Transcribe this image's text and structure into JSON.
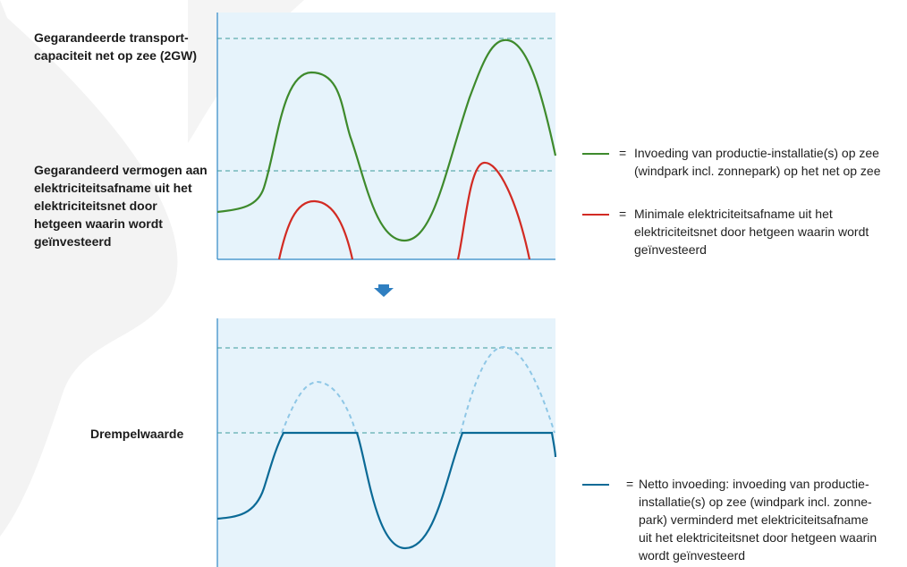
{
  "colors": {
    "panel_bg": "#e6f3fb",
    "axis": "#2f88c6",
    "grid_dashed": "#3c9b9b",
    "green": "#3e8a2c",
    "red": "#d22b23",
    "blue": "#0b6a96",
    "blue_light": "#8fc7e6",
    "arrow": "#2f7fc1"
  },
  "labels": {
    "transport_capacity": "Gegarandeerde transport-\ncapaciteit net op zee (2GW)",
    "guaranteed_power": "Gegarandeerd vermogen aan\nelektriciteitsafname uit het\nelektriciteitsnet door\nhetgeen waarin wordt\ngeïnvesteerd",
    "threshold": "Drempelwaarde"
  },
  "legend": {
    "eq": "=",
    "green_text": "Invoeding van productie-installatie(s) op zee\n(windpark incl. zonnepark) op het net op zee",
    "red_text": "Minimale elektriciteitsafname uit het\nelektriciteitsnet door hetgeen waarin wordt\ngeïnvesteerd",
    "blue_text": "Netto invoeding: invoeding van productie-\ninstallatie(s) op zee (windpark incl. zonne-\npark) verminderd met elektriciteitsafname\nuit het elektriciteitsnet door hetgeen waarin\nwordt geïnvesteerd"
  },
  "icons": {
    "arrow": "arrow-down-icon"
  }
}
